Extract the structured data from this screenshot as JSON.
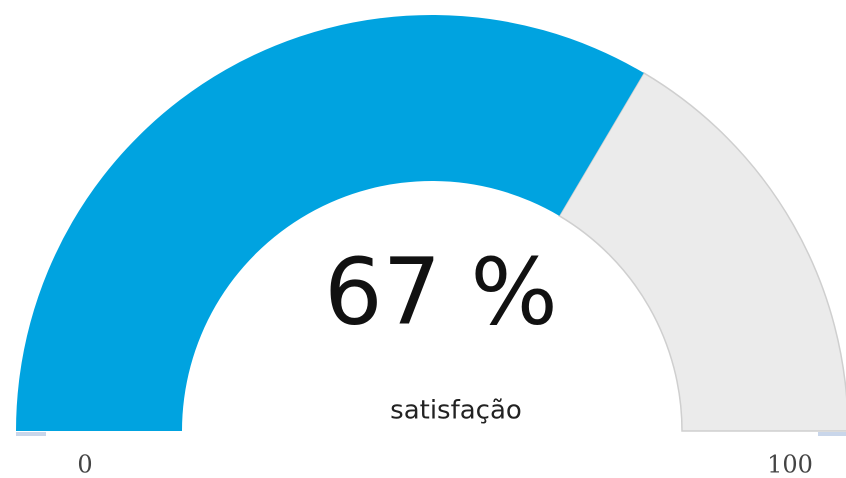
{
  "chart_data": {
    "type": "gauge",
    "value": 67,
    "value_label": "67 %",
    "label": "satisfação",
    "ylim": [
      0,
      100
    ],
    "yticks": [
      0,
      100
    ],
    "color": "#00a3e0",
    "track_color": "#ebebeb"
  }
}
